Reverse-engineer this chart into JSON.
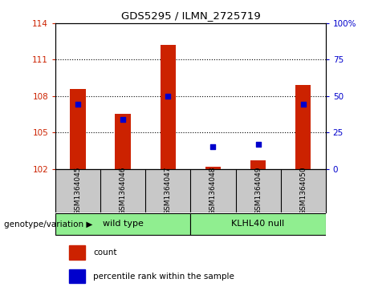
{
  "title": "GDS5295 / ILMN_2725719",
  "samples": [
    "GSM1364045",
    "GSM1364046",
    "GSM1364047",
    "GSM1364048",
    "GSM1364049",
    "GSM1364050"
  ],
  "red_values": [
    108.6,
    106.5,
    112.2,
    102.15,
    102.7,
    108.9
  ],
  "blue_values": [
    107.3,
    106.1,
    108.0,
    103.8,
    104.0,
    107.3
  ],
  "y_min": 102,
  "y_max": 114,
  "y_ticks": [
    102,
    105,
    108,
    111,
    114
  ],
  "right_y_ticks": [
    0,
    25,
    50,
    75,
    100
  ],
  "right_y_labels": [
    "0",
    "25",
    "50",
    "75",
    "100%"
  ],
  "groups": [
    {
      "label": "wild type",
      "start": 0,
      "end": 3,
      "color": "#90EE90"
    },
    {
      "label": "KLHL40 null",
      "start": 3,
      "end": 6,
      "color": "#90EE90"
    }
  ],
  "group_label": "genotype/variation",
  "bar_color": "#CC2200",
  "dot_color": "#0000CC",
  "bar_width": 0.35,
  "background_color": "#ffffff",
  "plot_bg_color": "#ffffff",
  "tick_label_color_left": "#CC2200",
  "tick_label_color_right": "#0000CC",
  "grid_color": "#000000",
  "sample_bg_color": "#C8C8C8"
}
